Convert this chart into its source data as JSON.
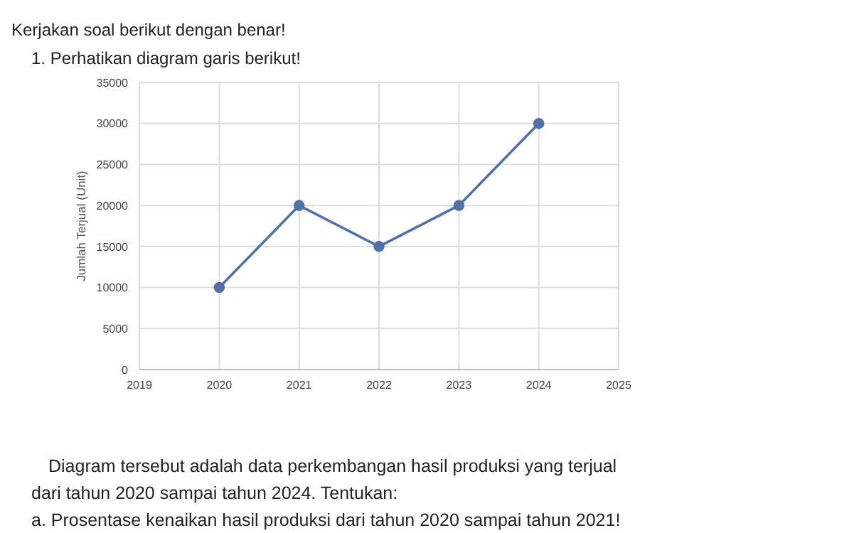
{
  "chart_data": {
    "type": "line",
    "xlabel": null,
    "ylabel": "Jumlah Terjual (Unit)",
    "annotations": [
      "Kerjakan soal berikut dengan benar!",
      "1. Perhatikan diagram garis berikut!",
      "Diagram tersebut adalah data perkembangan hasil produksi yang terjual",
      "dari tahun 2020 sampai tahun 2024. Tentukan:",
      "a. Prosentase kenaikan hasil produksi dari tahun 2020 sampai tahun 2021!"
    ],
    "x": [
      2020,
      2021,
      2022,
      2023,
      2024
    ],
    "series": [
      {
        "color": "#5470a8",
        "values": [
          10000,
          20000,
          15000,
          20000,
          30000
        ]
      }
    ],
    "xlim": [
      2019,
      2025
    ],
    "xticks": [
      2019,
      2020,
      2021,
      2022,
      2023,
      2024,
      2025
    ],
    "ylim": [
      0,
      35000
    ],
    "yticks": [
      0,
      5000,
      10000,
      15000,
      20000,
      25000,
      30000,
      35000
    ],
    "grid": true,
    "marker": "circle",
    "line_style": "solid",
    "legend": false
  }
}
